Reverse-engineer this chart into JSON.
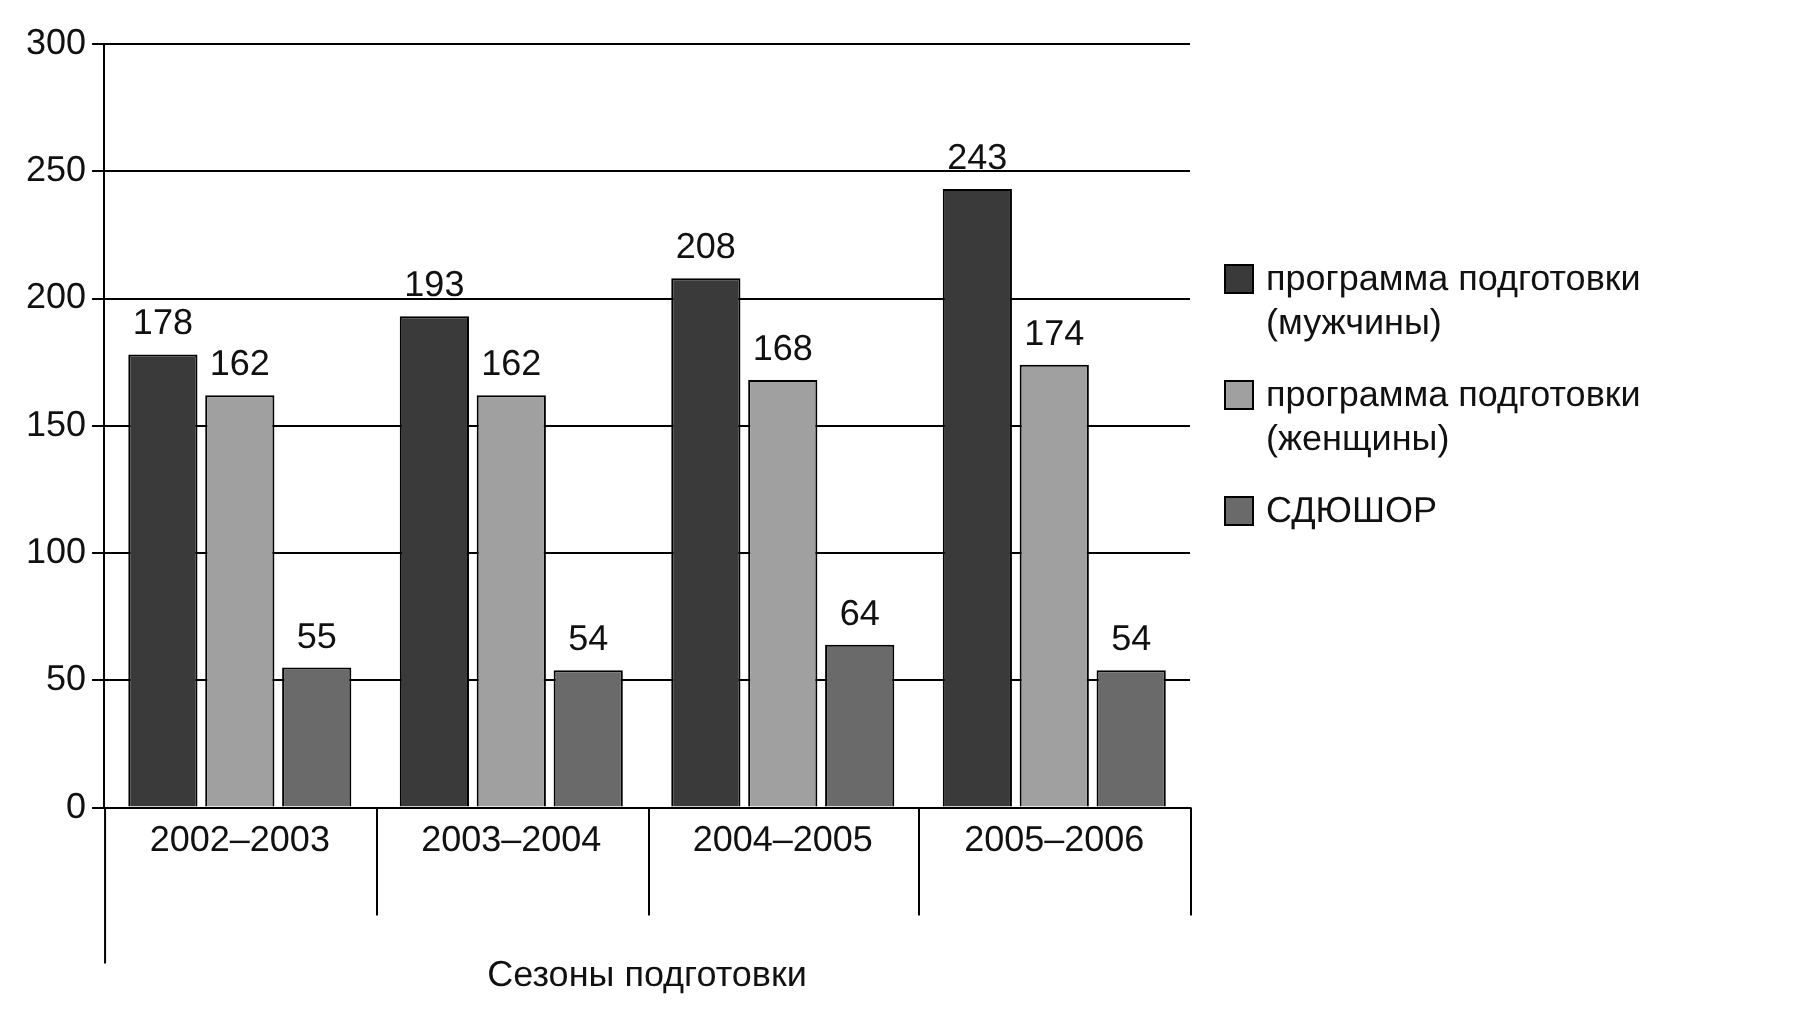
{
  "chart_data": {
    "type": "bar",
    "xlabel": "Сезоны подготовки",
    "categories": [
      "2002–2003",
      "2003–2004",
      "2004–2005",
      "2005–2006"
    ],
    "series": [
      {
        "name": "программа подготовки (мужчины)",
        "color": "#3a3a3a",
        "values": [
          178,
          193,
          208,
          243
        ]
      },
      {
        "name": "программа подготовки (женщины)",
        "color": "#a0a0a0",
        "values": [
          162,
          162,
          168,
          174
        ]
      },
      {
        "name": "СДЮШОР",
        "color": "#6a6a6a",
        "values": [
          55,
          54,
          64,
          54
        ]
      }
    ],
    "ylim": [
      0,
      300
    ],
    "yticks": [
      0,
      50,
      100,
      150,
      200,
      250,
      300
    ],
    "grid": "y",
    "legend": "right",
    "data_labels": true
  }
}
